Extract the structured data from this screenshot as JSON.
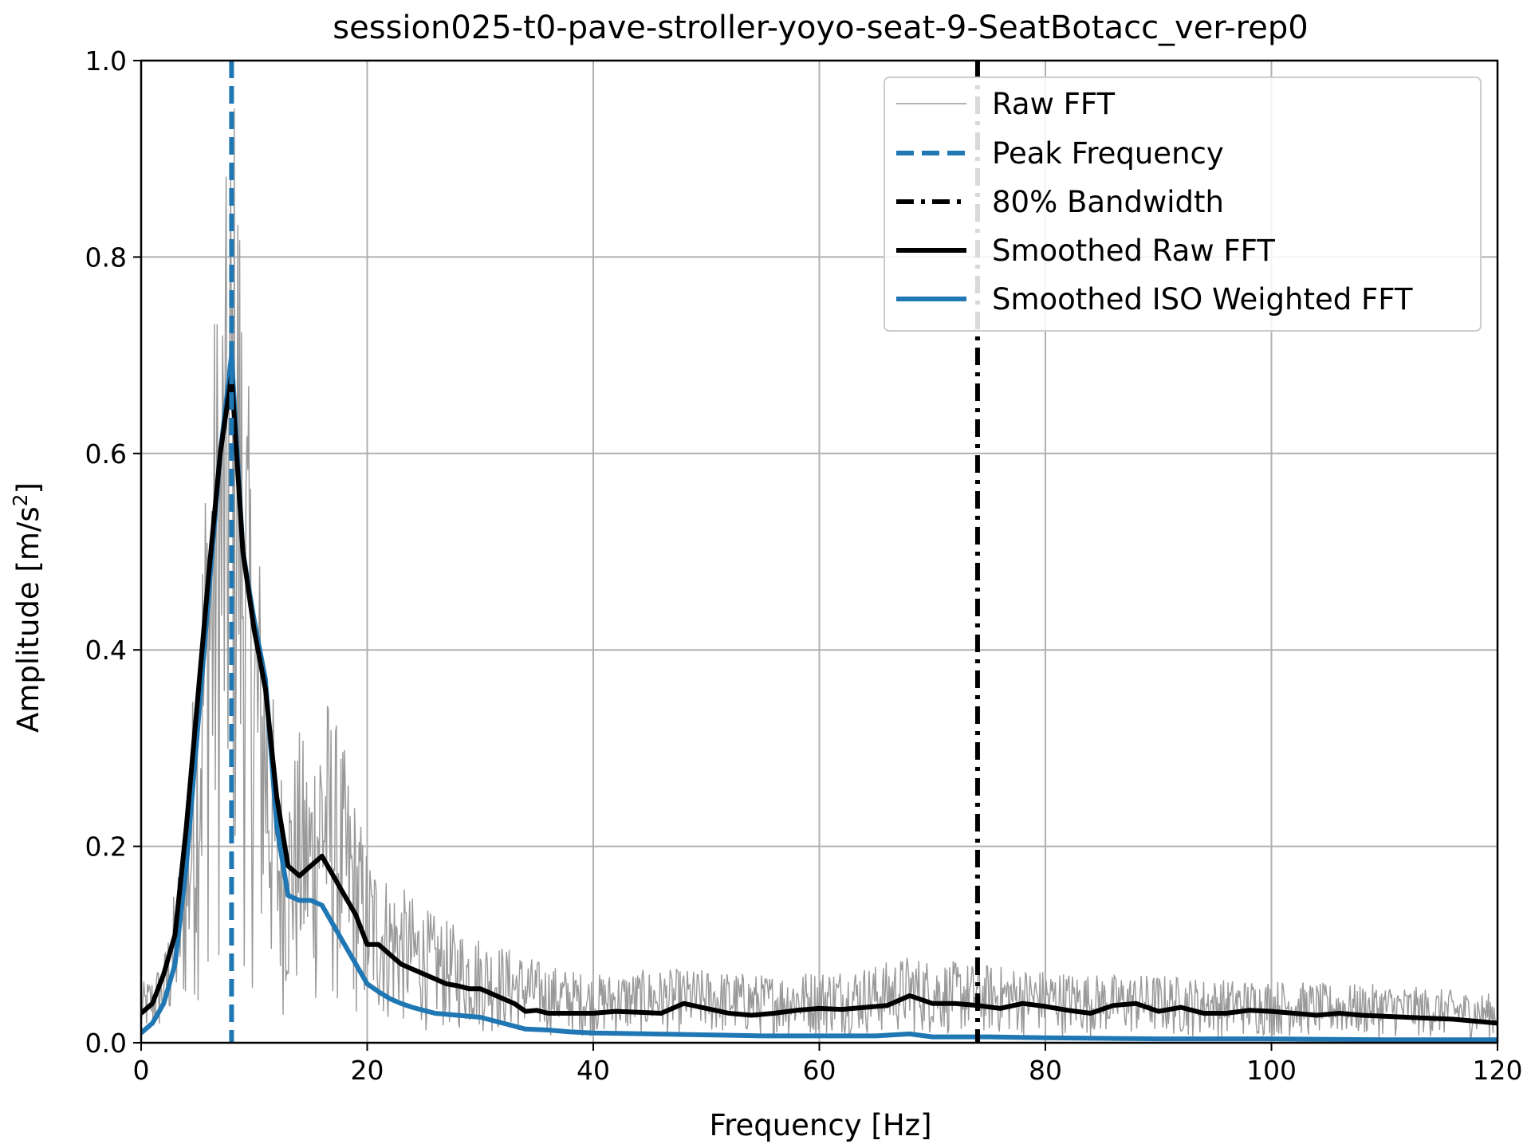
{
  "chart_data": {
    "type": "line",
    "title": "session025-t0-pave-stroller-yoyo-seat-9-SeatBotacc_ver-rep0",
    "xlabel": "Frequency [Hz]",
    "ylabel": "Amplitude [m/s",
    "ylabel_superscript": "2",
    "ylabel_suffix": "]",
    "xlim": [
      0,
      120
    ],
    "ylim": [
      0,
      1.0
    ],
    "xticks": [
      0,
      20,
      40,
      60,
      80,
      100,
      120
    ],
    "yticks": [
      0.0,
      0.2,
      0.4,
      0.6,
      0.8,
      1.0
    ],
    "xtick_labels": [
      "0",
      "20",
      "40",
      "60",
      "80",
      "100",
      "120"
    ],
    "ytick_labels": [
      "0.0",
      "0.2",
      "0.4",
      "0.6",
      "0.8",
      "1.0"
    ],
    "grid": true,
    "legend_position": "top-right",
    "peak_frequency": 8.0,
    "bandwidth_80": 74.0,
    "colors": {
      "raw": "#999999",
      "blue": "#1f77b4",
      "black": "#000000"
    },
    "series": [
      {
        "name": "Raw FFT",
        "style": "thin-gray",
        "envelope_x": [
          0,
          1,
          2,
          3,
          4,
          5,
          6,
          7,
          7.5,
          8,
          8.5,
          9,
          10,
          11,
          12,
          13,
          14,
          15,
          16,
          17,
          18,
          19,
          20,
          22,
          24,
          26,
          28,
          30,
          32,
          34,
          36,
          40,
          45,
          50,
          55,
          60,
          65,
          68,
          70,
          75,
          80,
          85,
          90,
          95,
          100,
          105,
          110,
          115,
          120
        ],
        "envelope_y": [
          0.06,
          0.07,
          0.09,
          0.16,
          0.25,
          0.45,
          0.7,
          0.82,
          0.88,
          1.0,
          1.0,
          0.8,
          0.55,
          0.48,
          0.3,
          0.28,
          0.32,
          0.3,
          0.38,
          0.34,
          0.3,
          0.25,
          0.2,
          0.17,
          0.15,
          0.13,
          0.12,
          0.11,
          0.1,
          0.09,
          0.08,
          0.07,
          0.075,
          0.075,
          0.07,
          0.075,
          0.08,
          0.09,
          0.085,
          0.08,
          0.075,
          0.07,
          0.07,
          0.065,
          0.065,
          0.06,
          0.06,
          0.055,
          0.05
        ]
      },
      {
        "name": "Peak Frequency",
        "style": "dashed-blue",
        "x": 8.0
      },
      {
        "name": "80% Bandwidth",
        "style": "dashdot-black",
        "x": 74.0
      },
      {
        "name": "Smoothed Raw FFT",
        "style": "solid-black",
        "x": [
          0,
          1,
          2,
          3,
          4,
          5,
          6,
          7,
          8,
          9,
          10,
          11,
          12,
          13,
          14,
          15,
          16,
          17,
          18,
          19,
          20,
          21,
          22,
          23,
          24,
          25,
          26,
          27,
          28,
          29,
          30,
          31,
          32,
          33,
          34,
          35,
          36,
          38,
          40,
          42,
          44,
          46,
          48,
          50,
          52,
          54,
          56,
          58,
          60,
          62,
          64,
          66,
          68,
          70,
          72,
          74,
          76,
          78,
          80,
          82,
          84,
          86,
          88,
          90,
          92,
          94,
          96,
          98,
          100,
          102,
          104,
          106,
          108,
          110,
          112,
          114,
          116,
          118,
          120
        ],
        "y": [
          0.03,
          0.04,
          0.07,
          0.11,
          0.22,
          0.35,
          0.48,
          0.6,
          0.68,
          0.5,
          0.42,
          0.36,
          0.25,
          0.18,
          0.17,
          0.18,
          0.19,
          0.17,
          0.15,
          0.13,
          0.1,
          0.1,
          0.09,
          0.08,
          0.075,
          0.07,
          0.065,
          0.06,
          0.058,
          0.055,
          0.055,
          0.05,
          0.045,
          0.04,
          0.032,
          0.033,
          0.03,
          0.03,
          0.03,
          0.032,
          0.031,
          0.03,
          0.04,
          0.035,
          0.03,
          0.028,
          0.03,
          0.033,
          0.035,
          0.034,
          0.036,
          0.038,
          0.048,
          0.04,
          0.04,
          0.038,
          0.035,
          0.04,
          0.037,
          0.033,
          0.03,
          0.038,
          0.04,
          0.032,
          0.036,
          0.03,
          0.03,
          0.033,
          0.032,
          0.03,
          0.028,
          0.03,
          0.028,
          0.027,
          0.026,
          0.025,
          0.024,
          0.022,
          0.02
        ]
      },
      {
        "name": "Smoothed ISO Weighted FFT",
        "style": "solid-blue",
        "x": [
          0,
          1,
          2,
          3,
          4,
          5,
          6,
          7,
          8,
          9,
          10,
          11,
          12,
          13,
          14,
          15,
          16,
          17,
          18,
          19,
          20,
          21,
          22,
          23,
          24,
          25,
          26,
          28,
          30,
          32,
          34,
          36,
          38,
          40,
          45,
          50,
          55,
          60,
          65,
          68,
          70,
          75,
          80,
          90,
          100,
          110,
          120
        ],
        "y": [
          0.01,
          0.02,
          0.04,
          0.08,
          0.18,
          0.32,
          0.46,
          0.6,
          0.7,
          0.5,
          0.43,
          0.37,
          0.22,
          0.15,
          0.145,
          0.145,
          0.14,
          0.12,
          0.1,
          0.08,
          0.06,
          0.052,
          0.045,
          0.04,
          0.036,
          0.033,
          0.03,
          0.028,
          0.026,
          0.02,
          0.014,
          0.013,
          0.011,
          0.01,
          0.009,
          0.008,
          0.007,
          0.007,
          0.007,
          0.009,
          0.006,
          0.006,
          0.005,
          0.004,
          0.004,
          0.003,
          0.003
        ]
      }
    ]
  }
}
